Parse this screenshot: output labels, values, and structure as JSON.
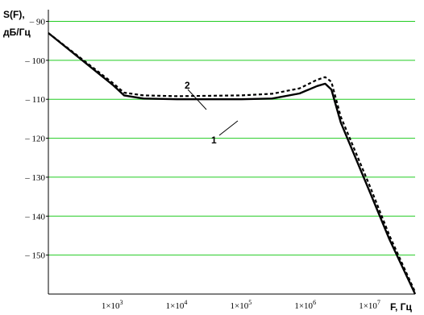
{
  "chart_data": {
    "type": "line",
    "ylabel": [
      "S(F),",
      "дБ/Гц"
    ],
    "xlabel": "F, Гц",
    "x_scale": "log",
    "xlim": [
      100,
      50000000
    ],
    "ylim": [
      -160,
      -87
    ],
    "grid": {
      "horizontal": true,
      "vertical": false,
      "color": "#22cc22"
    },
    "y_ticks": [
      -90,
      -100,
      -110,
      -120,
      -130,
      -140,
      -150
    ],
    "y_tick_labels": [
      "– 90",
      "– 100",
      "– 110",
      "– 120",
      "– 130",
      "– 140",
      "– 150"
    ],
    "x_ticks": [
      {
        "value": 1000,
        "mantissa": "1×10",
        "exp": "3"
      },
      {
        "value": 10000,
        "mantissa": "1×10",
        "exp": "4"
      },
      {
        "value": 100000,
        "mantissa": "1×10",
        "exp": "5"
      },
      {
        "value": 1000000,
        "mantissa": "1×10",
        "exp": "6"
      },
      {
        "value": 10000000,
        "mantissa": "1×10",
        "exp": "7"
      }
    ],
    "series": [
      {
        "id": "1",
        "style": "solid",
        "x": [
          100,
          1000,
          1500,
          3000,
          10000,
          100000,
          300000,
          800000,
          1500000,
          2000000,
          2500000,
          3500000,
          10000000,
          20000000,
          50000000
        ],
        "y": [
          -93,
          -106.3,
          -109,
          -109.8,
          -110,
          -110,
          -109.8,
          -108.5,
          -106.6,
          -106,
          -107.5,
          -116,
          -134,
          -146,
          -160
        ]
      },
      {
        "id": "2",
        "style": "dashed",
        "x": [
          100,
          1000,
          1500,
          3000,
          10000,
          100000,
          300000,
          800000,
          1500000,
          2000000,
          2500000,
          3500000,
          10000000,
          20000000,
          50000000
        ],
        "y": [
          -93,
          -105.8,
          -108.3,
          -109,
          -109.2,
          -109,
          -108.6,
          -107.2,
          -105,
          -104.3,
          -105.5,
          -114.5,
          -132.5,
          -145,
          -159.5
        ]
      }
    ],
    "annotations": [
      {
        "text": "1",
        "series": "1"
      },
      {
        "text": "2",
        "series": "2"
      }
    ]
  }
}
